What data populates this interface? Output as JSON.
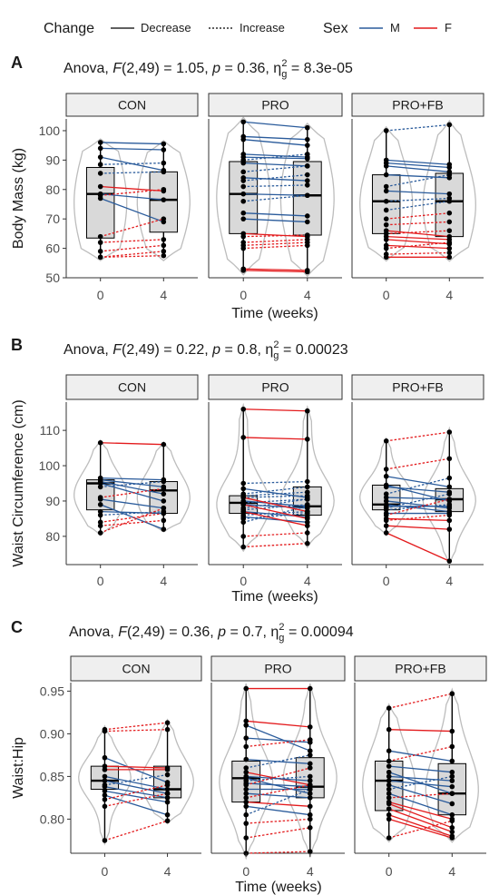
{
  "legend": {
    "change_title": "Change",
    "change_items": [
      {
        "label": "Decrease",
        "dash": "solid"
      },
      {
        "label": "Increase",
        "dash": "dotted"
      }
    ],
    "sex_title": "Sex",
    "sex_items": [
      {
        "label": "M",
        "color": "#2a5b9b"
      },
      {
        "label": "F",
        "color": "#e31a1c"
      }
    ]
  },
  "colors": {
    "M": "#2a5b9b",
    "F": "#e31a1c",
    "violin": "#bdbdbd",
    "box": "#d9d9d9",
    "strip": "#efefef"
  },
  "chart_data": [
    {
      "type": "boxplot-violin-paired",
      "tag": "A",
      "title": {
        "pre": "Anova, ",
        "F": "F",
        "mid1": "(2,49) = 1.05, ",
        "p": "p",
        "mid2": " = 0.36, ",
        "eta": "η",
        "g": "g",
        "sup": "2",
        "post": " = 8.3e-05"
      },
      "facets": [
        "CON",
        "PRO",
        "PRO+FB"
      ],
      "xlabel": "Time (weeks)",
      "ylabel": "Body Mass (kg)",
      "x_ticks": [
        "0",
        "4"
      ],
      "ylim": [
        50,
        104
      ],
      "y_ticks": [
        50,
        60,
        70,
        80,
        90,
        100
      ],
      "boxes": [
        [
          {
            "q1": 63.5,
            "med": 78.5,
            "q3": 87.5,
            "min": 57,
            "max": 96
          },
          {
            "q1": 65.5,
            "med": 76.5,
            "q3": 86.0,
            "min": 57,
            "max": 95.5
          }
        ],
        [
          {
            "q1": 65.0,
            "med": 78.5,
            "q3": 89.5,
            "min": 52.5,
            "max": 103
          },
          {
            "q1": 64.5,
            "med": 78.0,
            "q3": 89.5,
            "min": 52,
            "max": 101
          }
        ],
        [
          {
            "q1": 65.0,
            "med": 76.0,
            "q3": 85.0,
            "min": 57,
            "max": 100
          },
          {
            "q1": 64.0,
            "med": 76.0,
            "q3": 85.5,
            "min": 57,
            "max": 102
          }
        ]
      ],
      "pairs": [
        [
          [
            96,
            95.5,
            "M"
          ],
          [
            94,
            93.5,
            "M"
          ],
          [
            91,
            86.5,
            "M"
          ],
          [
            88.5,
            89,
            "M"
          ],
          [
            85.5,
            86,
            "M"
          ],
          [
            78.5,
            76.5,
            "M"
          ],
          [
            77,
            69,
            "M"
          ],
          [
            81,
            79.5,
            "F"
          ],
          [
            78,
            80,
            "F"
          ],
          [
            64,
            70,
            "F"
          ],
          [
            62,
            63,
            "F"
          ],
          [
            59,
            61,
            "F"
          ],
          [
            57,
            59,
            "F"
          ],
          [
            57,
            57.5,
            "F"
          ]
        ],
        [
          [
            103,
            101,
            "M"
          ],
          [
            98,
            97,
            "M"
          ],
          [
            97,
            95,
            "M"
          ],
          [
            92,
            91,
            "M"
          ],
          [
            91,
            90.5,
            "M"
          ],
          [
            90,
            92,
            "M"
          ],
          [
            89,
            88,
            "M"
          ],
          [
            86,
            88,
            "M"
          ],
          [
            84,
            83,
            "M"
          ],
          [
            83,
            85,
            "M"
          ],
          [
            81,
            81.5,
            "M"
          ],
          [
            78.5,
            78,
            "M"
          ],
          [
            76,
            78,
            "M"
          ],
          [
            72,
            71,
            "M"
          ],
          [
            70,
            69,
            "M"
          ],
          [
            65,
            64,
            "F"
          ],
          [
            64,
            64.5,
            "F"
          ],
          [
            62,
            63,
            "F"
          ],
          [
            61,
            62,
            "F"
          ],
          [
            60,
            61,
            "F"
          ],
          [
            53,
            52.5,
            "F"
          ],
          [
            52.5,
            52,
            "F"
          ]
        ],
        [
          [
            100,
            102,
            "M"
          ],
          [
            90,
            88.5,
            "M"
          ],
          [
            89,
            87.5,
            "M"
          ],
          [
            88,
            86,
            "M"
          ],
          [
            85,
            84,
            "M"
          ],
          [
            81,
            85,
            "M"
          ],
          [
            79.5,
            78.5,
            "M"
          ],
          [
            76,
            77,
            "M"
          ],
          [
            73,
            76,
            "M"
          ],
          [
            70,
            72,
            "F"
          ],
          [
            68,
            69,
            "F"
          ],
          [
            66,
            64,
            "F"
          ],
          [
            65,
            66,
            "F"
          ],
          [
            64,
            63,
            "F"
          ],
          [
            63,
            61.5,
            "F"
          ],
          [
            61,
            60,
            "F"
          ],
          [
            60,
            62,
            "F"
          ],
          [
            58,
            58.5,
            "F"
          ],
          [
            57,
            57,
            "F"
          ]
        ]
      ]
    },
    {
      "type": "boxplot-violin-paired",
      "tag": "B",
      "title": {
        "pre": "Anova, ",
        "F": "F",
        "mid1": "(2,49) = 0.22, ",
        "p": "p",
        "mid2": " = 0.8, ",
        "eta": "η",
        "g": "g",
        "sup": "2",
        "post": " = 0.00023"
      },
      "facets": [
        "CON",
        "PRO",
        "PRO+FB"
      ],
      "xlabel": "Time (weeks)",
      "ylabel": "Waist Circumference (cm)",
      "x_ticks": [
        "0",
        "4"
      ],
      "ylim": [
        72,
        118
      ],
      "y_ticks": [
        80,
        90,
        100,
        110
      ],
      "boxes": [
        [
          {
            "q1": 87.5,
            "med": 95.0,
            "q3": 96.0,
            "min": 81,
            "max": 106.5
          },
          {
            "q1": 86.5,
            "med": 93.0,
            "q3": 95.5,
            "min": 82,
            "max": 106
          }
        ],
        [
          {
            "q1": 86.5,
            "med": 89.5,
            "q3": 91.5,
            "min": 77,
            "max": 116
          },
          {
            "q1": 86.0,
            "med": 88.5,
            "q3": 94.0,
            "min": 78,
            "max": 115.5
          }
        ],
        [
          {
            "q1": 87.5,
            "med": 89.0,
            "q3": 94.5,
            "min": 81,
            "max": 107
          },
          {
            "q1": 87.0,
            "med": 90.5,
            "q3": 93.5,
            "min": 73,
            "max": 109.5
          }
        ]
      ],
      "pairs": [
        [
          [
            106.5,
            106,
            "F"
          ],
          [
            96.5,
            96,
            "M"
          ],
          [
            96,
            94,
            "M"
          ],
          [
            95.5,
            92,
            "M"
          ],
          [
            95,
            90,
            "M"
          ],
          [
            94,
            95.5,
            "M"
          ],
          [
            91,
            93.5,
            "F"
          ],
          [
            90.5,
            88,
            "M"
          ],
          [
            89,
            82,
            "M"
          ],
          [
            87,
            86.5,
            "M"
          ],
          [
            86,
            87,
            "M"
          ],
          [
            84,
            86.5,
            "F"
          ],
          [
            83,
            84.5,
            "F"
          ],
          [
            81,
            88,
            "F"
          ]
        ],
        [
          [
            116,
            115.5,
            "F"
          ],
          [
            108,
            107.5,
            "F"
          ],
          [
            95,
            95.5,
            "M"
          ],
          [
            93.5,
            91,
            "M"
          ],
          [
            92,
            94,
            "M"
          ],
          [
            91.5,
            92.5,
            "M"
          ],
          [
            91,
            91.5,
            "M"
          ],
          [
            90,
            88.5,
            "M"
          ],
          [
            89.5,
            90.5,
            "M"
          ],
          [
            89,
            88,
            "M"
          ],
          [
            88,
            90.5,
            "M"
          ],
          [
            87.5,
            89,
            "M"
          ],
          [
            87,
            85.5,
            "M"
          ],
          [
            86,
            87,
            "M"
          ],
          [
            85.5,
            84,
            "M"
          ],
          [
            85,
            86.5,
            "M"
          ],
          [
            84,
            88.5,
            "M"
          ],
          [
            91,
            87,
            "F"
          ],
          [
            89,
            85,
            "F"
          ],
          [
            87,
            83,
            "F"
          ],
          [
            80,
            81,
            "F"
          ],
          [
            77,
            78,
            "F"
          ]
        ],
        [
          [
            107,
            109.5,
            "F"
          ],
          [
            99,
            102,
            "F"
          ],
          [
            97,
            94,
            "M"
          ],
          [
            94.5,
            90,
            "M"
          ],
          [
            94,
            92.5,
            "M"
          ],
          [
            92,
            96.5,
            "M"
          ],
          [
            91,
            90.5,
            "M"
          ],
          [
            90,
            88,
            "M"
          ],
          [
            89,
            87,
            "M"
          ],
          [
            88.5,
            88.5,
            "M"
          ],
          [
            88,
            92,
            "M"
          ],
          [
            87.5,
            89,
            "M"
          ],
          [
            86.5,
            86.5,
            "M"
          ],
          [
            86,
            90.5,
            "F"
          ],
          [
            85,
            84.5,
            "F"
          ],
          [
            84.5,
            86,
            "F"
          ],
          [
            83,
            82,
            "F"
          ],
          [
            81,
            73,
            "F"
          ]
        ]
      ]
    },
    {
      "type": "boxplot-violin-paired",
      "tag": "C",
      "title": {
        "pre": "Anova, ",
        "F": "F",
        "mid1": "(2,49) = 0.36, ",
        "p": "p",
        "mid2": " = 0.7, ",
        "eta": "η",
        "g": "g",
        "sup": "2",
        "post": " = 0.00094"
      },
      "facets": [
        "CON",
        "PRO",
        "PRO+FB"
      ],
      "xlabel": "Time (weeks)",
      "ylabel": "Waist:Hip",
      "x_ticks": [
        "0",
        "4"
      ],
      "ylim": [
        0.76,
        0.96
      ],
      "y_ticks": [
        0.8,
        0.85,
        0.9,
        0.95
      ],
      "boxes": [
        [
          {
            "q1": 0.835,
            "med": 0.845,
            "q3": 0.862,
            "min": 0.775,
            "max": 0.905
          },
          {
            "q1": 0.825,
            "med": 0.835,
            "q3": 0.862,
            "min": 0.798,
            "max": 0.913
          }
        ],
        [
          {
            "q1": 0.82,
            "med": 0.848,
            "q3": 0.868,
            "min": 0.76,
            "max": 0.953
          },
          {
            "q1": 0.825,
            "med": 0.838,
            "q3": 0.872,
            "min": 0.762,
            "max": 0.953
          }
        ],
        [
          {
            "q1": 0.81,
            "med": 0.845,
            "q3": 0.868,
            "min": 0.778,
            "max": 0.93
          },
          {
            "q1": 0.805,
            "med": 0.83,
            "q3": 0.865,
            "min": 0.778,
            "max": 0.947
          }
        ]
      ],
      "pairs": [
        [
          [
            0.905,
            0.913,
            "F"
          ],
          [
            0.903,
            0.905,
            "F"
          ],
          [
            0.872,
            0.843,
            "M"
          ],
          [
            0.862,
            0.86,
            "F"
          ],
          [
            0.858,
            0.858,
            "F"
          ],
          [
            0.85,
            0.835,
            "M"
          ],
          [
            0.845,
            0.83,
            "M"
          ],
          [
            0.84,
            0.852,
            "M"
          ],
          [
            0.838,
            0.825,
            "M"
          ],
          [
            0.833,
            0.82,
            "M"
          ],
          [
            0.828,
            0.805,
            "M"
          ],
          [
            0.823,
            0.84,
            "F"
          ],
          [
            0.815,
            0.83,
            "F"
          ],
          [
            0.775,
            0.798,
            "F"
          ]
        ],
        [
          [
            0.953,
            0.953,
            "F"
          ],
          [
            0.915,
            0.908,
            "F"
          ],
          [
            0.91,
            0.88,
            "M"
          ],
          [
            0.895,
            0.89,
            "M"
          ],
          [
            0.885,
            0.893,
            "F"
          ],
          [
            0.87,
            0.865,
            "M"
          ],
          [
            0.86,
            0.875,
            "M"
          ],
          [
            0.855,
            0.84,
            "F"
          ],
          [
            0.85,
            0.845,
            "M"
          ],
          [
            0.848,
            0.83,
            "M"
          ],
          [
            0.845,
            0.85,
            "M"
          ],
          [
            0.842,
            0.838,
            "M"
          ],
          [
            0.84,
            0.86,
            "F"
          ],
          [
            0.835,
            0.835,
            "M"
          ],
          [
            0.83,
            0.825,
            "M"
          ],
          [
            0.825,
            0.84,
            "F"
          ],
          [
            0.82,
            0.815,
            "F"
          ],
          [
            0.815,
            0.805,
            "M"
          ],
          [
            0.805,
            0.835,
            "M"
          ],
          [
            0.795,
            0.8,
            "F"
          ],
          [
            0.778,
            0.79,
            "F"
          ],
          [
            0.76,
            0.762,
            "F"
          ]
        ],
        [
          [
            0.93,
            0.947,
            "F"
          ],
          [
            0.905,
            0.903,
            "F"
          ],
          [
            0.88,
            0.868,
            "M"
          ],
          [
            0.868,
            0.885,
            "F"
          ],
          [
            0.862,
            0.855,
            "M"
          ],
          [
            0.855,
            0.83,
            "M"
          ],
          [
            0.85,
            0.845,
            "M"
          ],
          [
            0.845,
            0.838,
            "M"
          ],
          [
            0.84,
            0.818,
            "M"
          ],
          [
            0.835,
            0.85,
            "M"
          ],
          [
            0.83,
            0.805,
            "M"
          ],
          [
            0.825,
            0.83,
            "F"
          ],
          [
            0.82,
            0.8,
            "F"
          ],
          [
            0.818,
            0.79,
            "F"
          ],
          [
            0.812,
            0.785,
            "F"
          ],
          [
            0.805,
            0.78,
            "F"
          ],
          [
            0.8,
            0.778,
            "F"
          ],
          [
            0.778,
            0.798,
            "F"
          ]
        ]
      ]
    }
  ]
}
